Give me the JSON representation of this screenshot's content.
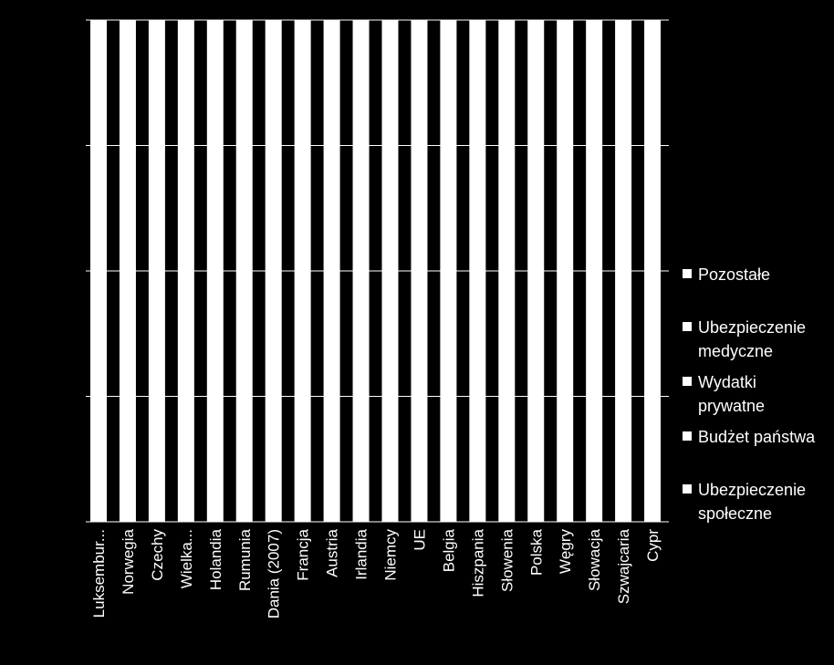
{
  "chart_data": {
    "type": "bar",
    "stacked": true,
    "percent": true,
    "categories": [
      "Luksembur...",
      "Norwegia",
      "Czechy",
      "Wielka...",
      "Holandia",
      "Rumunia",
      "Dania (2007)",
      "Francja",
      "Austria",
      "Irlandia",
      "Niemcy",
      "UE",
      "Belgia",
      "Hiszpania",
      "Słowenia",
      "Polska",
      "Węgry",
      "Słowacja",
      "Szwajcaria",
      "Cypr"
    ],
    "series": [
      {
        "name": "Ubezpieczenie społeczne",
        "values": [
          100,
          100,
          100,
          100,
          100,
          100,
          100,
          100,
          100,
          100,
          100,
          100,
          100,
          100,
          100,
          100,
          100,
          100,
          100,
          100
        ]
      },
      {
        "name": "Budżet państwa",
        "values": [
          0,
          0,
          0,
          0,
          0,
          0,
          0,
          0,
          0,
          0,
          0,
          0,
          0,
          0,
          0,
          0,
          0,
          0,
          0,
          0
        ]
      },
      {
        "name": "Wydatki prywatne",
        "values": [
          0,
          0,
          0,
          0,
          0,
          0,
          0,
          0,
          0,
          0,
          0,
          0,
          0,
          0,
          0,
          0,
          0,
          0,
          0,
          0
        ]
      },
      {
        "name": "Ubezpieczenie medyczne",
        "values": [
          0,
          0,
          0,
          0,
          0,
          0,
          0,
          0,
          0,
          0,
          0,
          0,
          0,
          0,
          0,
          0,
          0,
          0,
          0,
          0
        ]
      },
      {
        "name": "Pozostałe",
        "values": [
          0,
          0,
          0,
          0,
          0,
          0,
          0,
          0,
          0,
          0,
          0,
          0,
          0,
          0,
          0,
          0,
          0,
          0,
          0,
          0
        ]
      }
    ],
    "ylim": [
      0,
      100
    ],
    "gridlines": 4,
    "grid": true,
    "legend_position": "right",
    "colors": {
      "bar": "#ffffff",
      "background": "#000000",
      "grid": "#ffffff",
      "text": "#ffffff"
    }
  },
  "legend": {
    "items": [
      {
        "label": "Pozostałe"
      },
      {
        "label": "Ubezpieczenie medyczne"
      },
      {
        "label": "Wydatki prywatne"
      },
      {
        "label": "Budżet państwa"
      },
      {
        "label": "Ubezpieczenie społeczne"
      }
    ]
  }
}
